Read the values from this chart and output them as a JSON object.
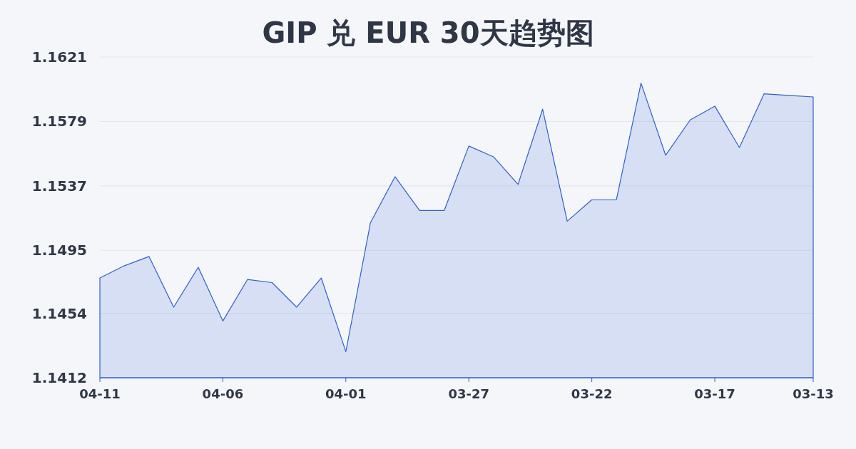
{
  "chart_data": {
    "type": "area",
    "title": "GIP 兑 EUR 30天趋势图",
    "categories": [
      "04-11",
      null,
      null,
      null,
      null,
      "04-06",
      null,
      null,
      null,
      null,
      "04-01",
      null,
      null,
      null,
      null,
      "03-27",
      null,
      null,
      null,
      null,
      "03-22",
      null,
      null,
      null,
      null,
      "03-17",
      null,
      null,
      null,
      "03-13"
    ],
    "values": [
      1.1477,
      1.1485,
      1.1491,
      1.1458,
      1.1484,
      1.1449,
      1.1476,
      1.1474,
      1.1458,
      1.1477,
      1.1429,
      1.1513,
      1.1543,
      1.1521,
      1.1521,
      1.1563,
      1.1556,
      1.1538,
      1.1587,
      1.1514,
      1.1528,
      1.1528,
      1.1604,
      1.1557,
      1.158,
      1.1589,
      1.1562,
      1.1597,
      1.1596,
      1.1595
    ],
    "color": "#2f5fce",
    "ylim": [
      1.1412,
      1.1621
    ],
    "yticks": [
      1.1412,
      1.1454,
      1.1495,
      1.1537,
      1.1579,
      1.1621
    ],
    "grid": "y"
  }
}
